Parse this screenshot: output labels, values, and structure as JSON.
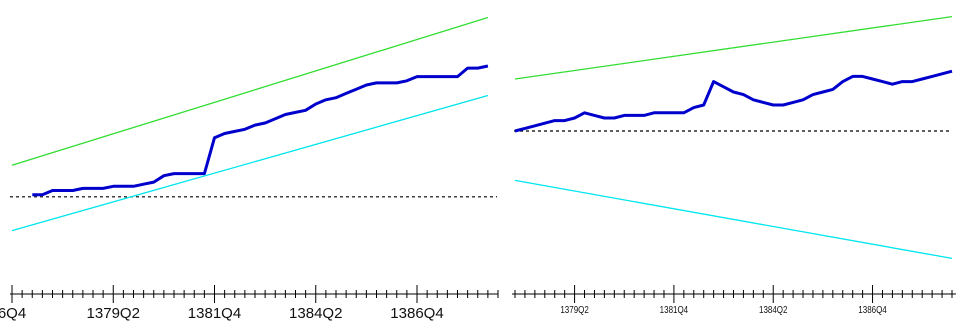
{
  "chart_data": [
    {
      "type": "line",
      "title": "",
      "xlabel": "",
      "ylabel": "",
      "x_tick_labels": [
        "6Q4",
        "1379Q2",
        "1381Q4",
        "1384Q2",
        "1386Q4"
      ],
      "x_tick_positions": [
        0,
        10,
        20,
        30,
        40
      ],
      "x_range": [
        0,
        48
      ],
      "y_range": [
        0,
        100
      ],
      "reference_line": {
        "y": 38,
        "style": "dashed",
        "color": "#000000"
      },
      "series": [
        {
          "color": "#0000cc",
          "x": [
            2,
            3,
            4,
            5,
            6,
            7,
            8,
            9,
            10,
            11,
            12,
            13,
            14,
            15,
            16,
            17,
            18,
            19,
            20,
            21,
            22,
            23,
            24,
            25,
            26,
            27,
            28,
            29,
            30,
            31,
            32,
            33,
            34,
            35,
            36,
            37,
            38,
            39,
            40,
            41,
            42,
            43,
            44,
            45,
            46,
            47
          ],
          "values": [
            39,
            39,
            41,
            41,
            41,
            42,
            42,
            42,
            43,
            43,
            43,
            44,
            45,
            48,
            49,
            49,
            49,
            49,
            66,
            68,
            69,
            70,
            72,
            73,
            75,
            77,
            78,
            79,
            82,
            84,
            85,
            87,
            89,
            91,
            92,
            92,
            92,
            93,
            95,
            95,
            95,
            95,
            95,
            99,
            99,
            100
          ]
        },
        {
          "color": "#33dd33",
          "x": [
            0,
            47
          ],
          "values": [
            53,
            123
          ]
        },
        {
          "color": "#00e5ee",
          "x": [
            0,
            47
          ],
          "values": [
            22,
            86
          ]
        }
      ]
    },
    {
      "type": "line",
      "title": "",
      "xlabel": "",
      "ylabel": "",
      "x_tick_labels": [
        "1379Q2",
        "1381Q4",
        "1384Q2",
        "1386Q4"
      ],
      "x_tick_positions": [
        6,
        16,
        26,
        36
      ],
      "x_range": [
        0,
        44
      ],
      "y_range": [
        0,
        100
      ],
      "reference_line": {
        "y": 55,
        "style": "dashed",
        "color": "#000000"
      },
      "series": [
        {
          "color": "#0000cc",
          "x": [
            0,
            1,
            2,
            3,
            4,
            5,
            6,
            7,
            8,
            9,
            10,
            11,
            12,
            13,
            14,
            15,
            16,
            17,
            18,
            19,
            20,
            21,
            22,
            23,
            24,
            25,
            26,
            27,
            28,
            29,
            30,
            31,
            32,
            33,
            34,
            35,
            36,
            37,
            38,
            39,
            40,
            41,
            42,
            43,
            44
          ],
          "values": [
            55,
            56,
            57,
            58,
            59,
            59,
            60,
            62,
            61,
            60,
            60,
            61,
            61,
            61,
            62,
            62,
            62,
            62,
            64,
            65,
            74,
            72,
            70,
            69,
            67,
            66,
            65,
            65,
            66,
            67,
            69,
            70,
            71,
            74,
            76,
            76,
            75,
            74,
            73,
            74,
            74,
            75,
            76,
            77,
            78
          ]
        },
        {
          "color": "#33dd33",
          "x": [
            0,
            44
          ],
          "values": [
            75,
            99
          ]
        },
        {
          "color": "#00e5ee",
          "x": [
            0,
            44
          ],
          "values": [
            36,
            6
          ]
        }
      ]
    }
  ]
}
